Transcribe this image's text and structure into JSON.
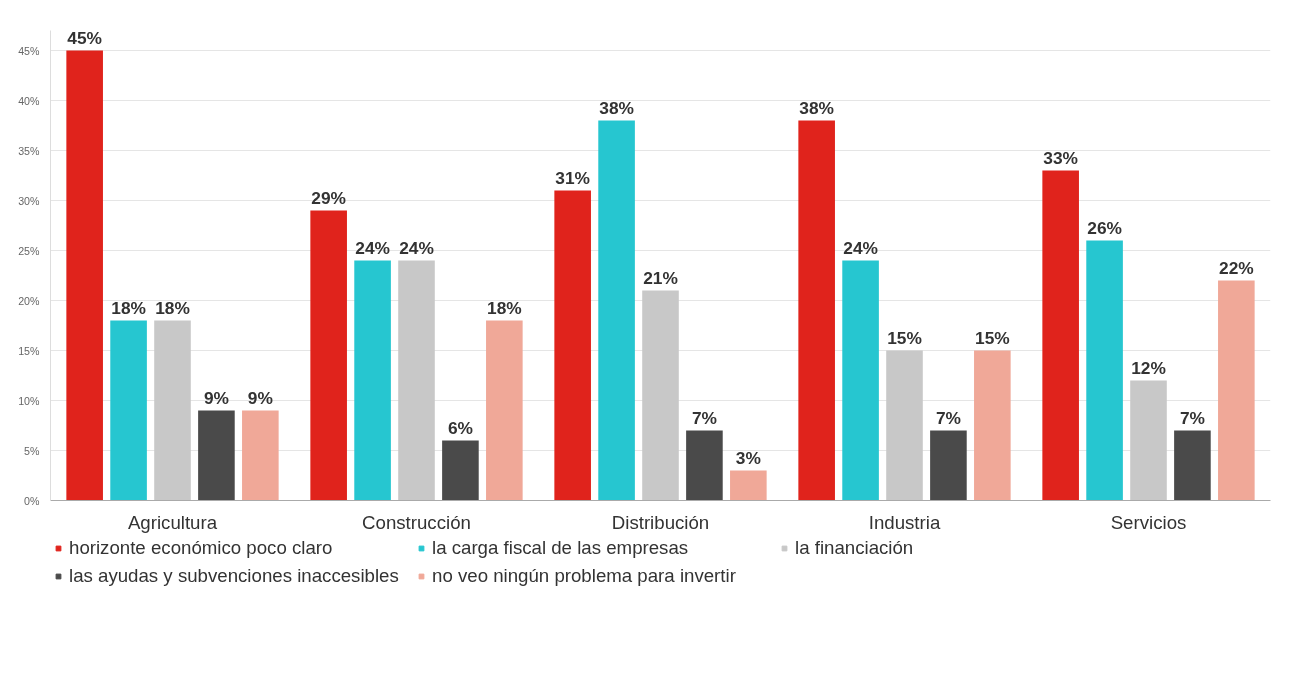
{
  "chart_data": {
    "type": "bar",
    "categories": [
      "Agricultura",
      "Construcción",
      "Distribución",
      "Industria",
      "Servicios"
    ],
    "series": [
      {
        "name": "horizonte económico poco claro",
        "color": "#e0231c",
        "values": [
          45,
          29,
          31,
          38,
          33
        ],
        "value_labels": [
          "45%",
          "29%",
          "31%",
          "38%",
          "33%"
        ]
      },
      {
        "name": "la carga fiscal de las empresas",
        "color": "#26c6d0",
        "values": [
          18,
          24,
          38,
          24,
          26
        ],
        "value_labels": [
          "18%",
          "24%",
          "38%",
          "24%",
          "26%"
        ]
      },
      {
        "name": "la financiación",
        "color": "#c8c8c8",
        "values": [
          18,
          24,
          21,
          15,
          12
        ],
        "value_labels": [
          "18%",
          "24%",
          "21%",
          "15%",
          "12%"
        ]
      },
      {
        "name": "las ayudas y subvenciones inaccesibles",
        "color": "#4a4a4a",
        "values": [
          9,
          6,
          7,
          7,
          7
        ],
        "value_labels": [
          "9%",
          "6%",
          "7%",
          "7%",
          "7%"
        ]
      },
      {
        "name": "no veo ningún problema para invertir",
        "color": "#f0a898",
        "values": [
          9,
          18,
          3,
          15,
          22
        ],
        "value_labels": [
          "9%",
          "18%",
          "3%",
          "15%",
          "22%"
        ]
      }
    ],
    "ylim": [
      0,
      47
    ],
    "yticks": [
      {
        "value": 0,
        "label": "0%"
      },
      {
        "value": 5,
        "label": "5%"
      },
      {
        "value": 10,
        "label": "10%"
      },
      {
        "value": 15,
        "label": "15%"
      },
      {
        "value": 20,
        "label": "20%"
      },
      {
        "value": 25,
        "label": "25%"
      },
      {
        "value": 30,
        "label": "30%"
      },
      {
        "value": 35,
        "label": "35%"
      },
      {
        "value": 40,
        "label": "40%"
      },
      {
        "value": 45,
        "label": "45%"
      }
    ],
    "grid": "y",
    "legend": "bottom"
  }
}
